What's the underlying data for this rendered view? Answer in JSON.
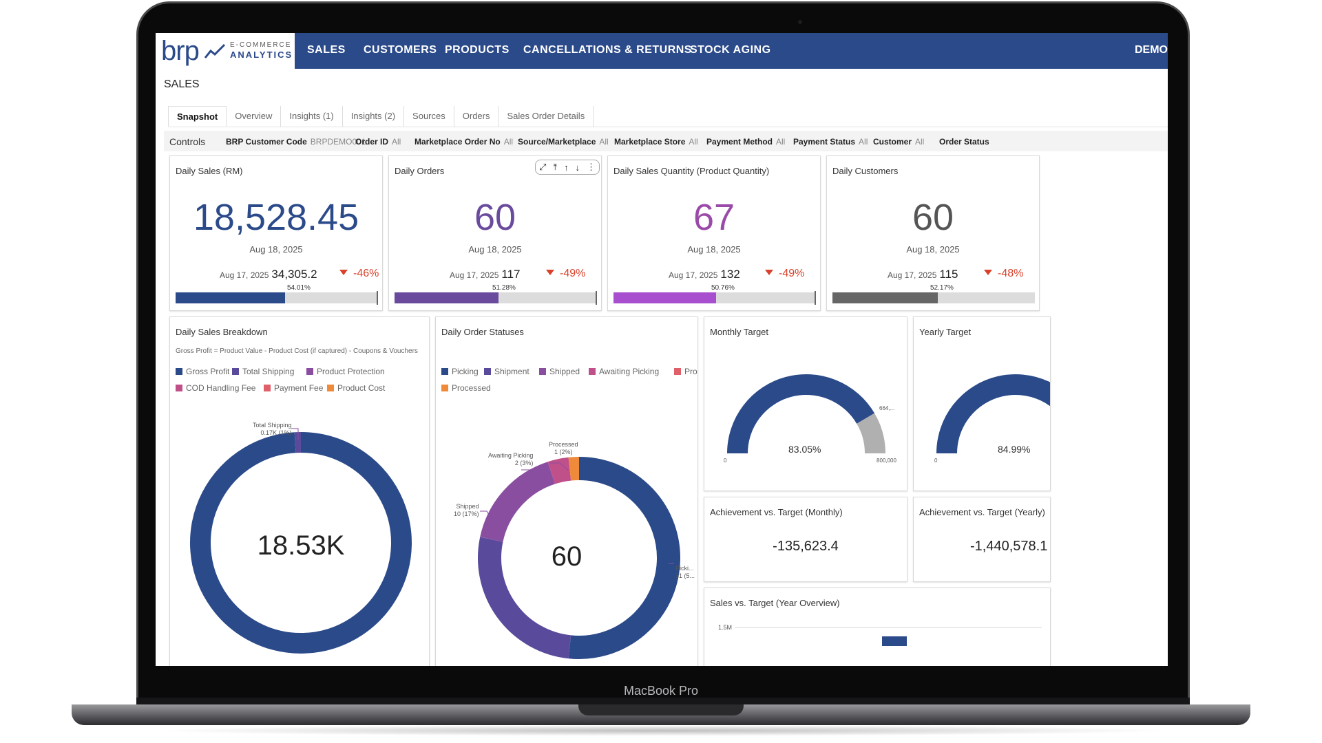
{
  "colors": {
    "navy": "#2b4a8a",
    "purple": "#6a4a9c",
    "magenta": "#a74fcf",
    "grey": "#666666",
    "red": "#d9412b",
    "track": "#dcdcdc"
  },
  "device": {
    "model": "MacBook Pro"
  },
  "logo": {
    "brand": "brp",
    "line1": "E-COMMERCE",
    "line2": "ANALYTICS"
  },
  "nav": {
    "items": [
      "SALES",
      "CUSTOMERS",
      "PRODUCTS",
      "CANCELLATIONS & RETURNS",
      "STOCK AGING"
    ],
    "user": "DEMO"
  },
  "page": {
    "title": "SALES"
  },
  "tabs": [
    "Snapshot",
    "Overview",
    "Insights (1)",
    "Insights (2)",
    "Sources",
    "Orders",
    "Sales Order Details"
  ],
  "controls": {
    "label": "Controls",
    "filters": [
      {
        "key": "BRP Customer Code",
        "value": "BRPDEMO001"
      },
      {
        "key": "Order ID",
        "value": "All"
      },
      {
        "key": "Marketplace Order No",
        "value": "All"
      },
      {
        "key": "Source/Marketplace",
        "value": "All"
      },
      {
        "key": "Marketplace Store",
        "value": "All"
      },
      {
        "key": "Payment Method",
        "value": "All"
      },
      {
        "key": "Payment Status",
        "value": "All"
      },
      {
        "key": "Customer",
        "value": "All"
      },
      {
        "key": "Order Status",
        "value": ""
      }
    ]
  },
  "kpis": [
    {
      "title": "Daily Sales (RM)",
      "value": "18,528.45",
      "date": "Aug 18, 2025",
      "compare_date": "Aug 17, 2025",
      "compare_value": "34,305.2",
      "delta": "-46%",
      "pct_label": "54.01%",
      "pct": 54.01,
      "color": "#2b4a8a"
    },
    {
      "title": "Daily Orders",
      "value": "60",
      "date": "Aug 18, 2025",
      "compare_date": "Aug 17, 2025",
      "compare_value": "117",
      "delta": "-49%",
      "pct_label": "51.28%",
      "pct": 51.28,
      "color": "#6a4a9c"
    },
    {
      "title": "Daily Sales Quantity (Product Quantity)",
      "value": "67",
      "date": "Aug 18, 2025",
      "compare_date": "Aug 17, 2025",
      "compare_value": "132",
      "delta": "-49%",
      "pct_label": "50.76%",
      "pct": 50.76,
      "color": "#a74fcf"
    },
    {
      "title": "Daily Customers",
      "value": "60",
      "date": "Aug 18, 2025",
      "compare_date": "Aug 17, 2025",
      "compare_value": "115",
      "delta": "-48%",
      "pct_label": "52.17%",
      "pct": 52.17,
      "color": "#666666"
    }
  ],
  "breakdown": {
    "title": "Daily Sales Breakdown",
    "subtitle": "Gross Profit = Product Value - Product Cost (if captured) - Coupons & Vouchers",
    "legend": [
      {
        "label": "Gross Profit",
        "color": "#2b4a8a"
      },
      {
        "label": "Total Shipping",
        "color": "#5a4a9c"
      },
      {
        "label": "Product Protection",
        "color": "#8a4ea0"
      },
      {
        "label": "COD Handling Fee",
        "color": "#c0508a"
      },
      {
        "label": "Payment Fee",
        "color": "#e0606a"
      },
      {
        "label": "Product Cost",
        "color": "#ee8a3a"
      }
    ],
    "center": "18.53K",
    "callout_line1": "Total Shipping",
    "callout_line2": "0.17K (1%)"
  },
  "statuses": {
    "title": "Daily Order Statuses",
    "legend": [
      {
        "label": "Picking",
        "color": "#2b4a8a"
      },
      {
        "label": "Shipment",
        "color": "#5a4a9c"
      },
      {
        "label": "Shipped",
        "color": "#8a4ea0"
      },
      {
        "label": "Awaiting Picking",
        "color": "#c0508a"
      },
      {
        "label": "Processing",
        "color": "#e0606a"
      },
      {
        "label": "Processed",
        "color": "#ee8a3a"
      }
    ],
    "center": "60",
    "labels": {
      "processed": [
        "Processed",
        "1 (2%)"
      ],
      "awaiting": [
        "Awaiting Picking",
        "2 (3%)"
      ],
      "shipped": [
        "Shipped",
        "10 (17%)"
      ],
      "picking": [
        "Picki...",
        "31 (5..."
      ]
    }
  },
  "monthly_target": {
    "title": "Monthly Target",
    "pct_label": "83.05%",
    "pct": 83.05,
    "min": "0",
    "max": "800,000",
    "target_label": "664,..."
  },
  "yearly_target": {
    "title": "Yearly Target",
    "pct_label": "84.99%",
    "pct": 84.99,
    "min": "0"
  },
  "ach_monthly": {
    "title": "Achievement  vs. Target (Monthly)",
    "value": "-135,623.4"
  },
  "ach_yearly": {
    "title": "Achievement  vs. Target (Yearly)",
    "value": "-1,440,578.1"
  },
  "sales_vs_target": {
    "title": "Sales vs. Target (Year Overview)",
    "y_tick": "1.5M"
  },
  "chart_data": [
    {
      "type": "pie",
      "title": "Daily Sales Breakdown",
      "categories": [
        "Gross Profit",
        "Total Shipping",
        "Product Protection",
        "COD Handling Fee",
        "Payment Fee",
        "Product Cost"
      ],
      "values": [
        18.36,
        0.17,
        0,
        0,
        0,
        0
      ],
      "unit": "K"
    },
    {
      "type": "pie",
      "title": "Daily Order Statuses",
      "categories": [
        "Picking",
        "Shipment",
        "Shipped",
        "Awaiting Picking",
        "Processing",
        "Processed"
      ],
      "values": [
        31,
        16,
        10,
        2,
        0,
        1
      ]
    }
  ]
}
